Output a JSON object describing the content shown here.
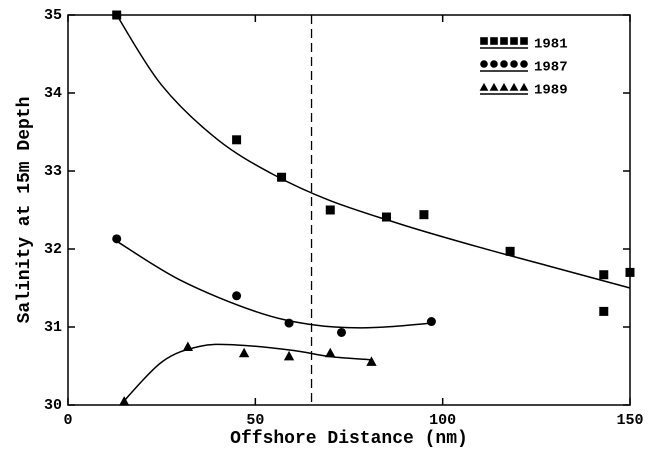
{
  "chart_data": {
    "type": "scatter",
    "xlabel": "Offshore Distance (nm)",
    "ylabel": "Salinity at 15m Depth",
    "xlim": [
      0,
      150
    ],
    "xticks": [
      0,
      50,
      100,
      150
    ],
    "ylim": [
      30,
      35
    ],
    "yticks": [
      30,
      31,
      32,
      33,
      34,
      35
    ],
    "vline": 65,
    "legend": "upper right",
    "series": [
      {
        "name": "1981",
        "color": "#000000",
        "marker": "square",
        "x": [
          13,
          45,
          57,
          70,
          85,
          95,
          118,
          143,
          143,
          150
        ],
        "values": [
          35.0,
          33.4,
          32.92,
          32.5,
          32.41,
          32.44,
          31.97,
          31.67,
          31.2,
          31.7
        ],
        "fit_x": [
          13,
          25,
          40,
          55,
          70,
          90,
          110,
          130,
          150
        ],
        "fit_y": [
          35.0,
          34.1,
          33.4,
          32.95,
          32.62,
          32.3,
          32.02,
          31.76,
          31.5
        ]
      },
      {
        "name": "1987",
        "color": "#000000",
        "marker": "circle",
        "x": [
          13,
          45,
          59,
          73,
          97
        ],
        "values": [
          32.13,
          31.4,
          31.05,
          30.93,
          31.07
        ],
        "fit_x": [
          13,
          30,
          50,
          65,
          80,
          97
        ],
        "fit_y": [
          32.1,
          31.6,
          31.2,
          31.03,
          30.99,
          31.05
        ]
      },
      {
        "name": "1989",
        "color": "#000000",
        "marker": "triangle",
        "x": [
          15,
          32,
          47,
          59,
          70,
          81
        ],
        "values": [
          30.05,
          30.75,
          30.67,
          30.63,
          30.67,
          30.56
        ],
        "fit_x": [
          14,
          25,
          35,
          45,
          60,
          70,
          81
        ],
        "fit_y": [
          30.0,
          30.55,
          30.75,
          30.77,
          30.7,
          30.62,
          30.58
        ]
      }
    ]
  }
}
